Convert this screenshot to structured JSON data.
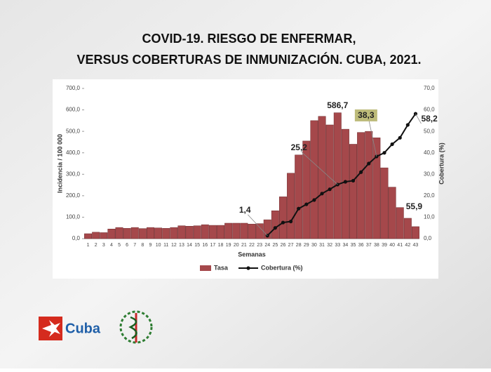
{
  "chart_data": {
    "type": "bar-line",
    "title": [
      "COVID-19.  RIESGO DE ENFERMAR,",
      "VERSUS COBERTURAS DE INMUNIZACIÓN.  CUBA, 2021."
    ],
    "xlabel": "Semanas",
    "ylabel": "Incidencia / 100 000",
    "y2label": "Cobertura (%)",
    "categories": [
      "1",
      "2",
      "3",
      "4",
      "5",
      "6",
      "7",
      "8",
      "9",
      "10",
      "11",
      "12",
      "13",
      "14",
      "15",
      "16",
      "17",
      "18",
      "19",
      "20",
      "21",
      "22",
      "23",
      "24",
      "25",
      "26",
      "27",
      "28",
      "29",
      "30",
      "31",
      "32",
      "33",
      "34",
      "35",
      "36",
      "37",
      "38",
      "39",
      "40",
      "41",
      "42",
      "43"
    ],
    "series": [
      {
        "name": "Tasa",
        "type": "bar",
        "color": "#a5484b",
        "values": [
          23,
          30,
          28,
          45,
          52,
          48,
          52,
          47,
          52,
          50,
          48,
          52,
          60,
          58,
          60,
          65,
          62,
          62,
          72,
          72,
          72,
          68,
          70,
          88,
          130,
          195,
          305,
          390,
          455,
          550,
          570,
          530,
          586.7,
          510,
          440,
          495,
          500,
          470,
          330,
          240,
          145,
          95,
          55.9
        ],
        "value_labels": [
          null,
          null,
          null,
          null,
          null,
          null,
          null,
          null,
          null,
          null,
          null,
          null,
          null,
          null,
          null,
          null,
          null,
          null,
          null,
          null,
          null,
          null,
          null,
          null,
          null,
          null,
          null,
          null,
          null,
          null,
          null,
          null,
          "586,7",
          null,
          null,
          null,
          null,
          null,
          null,
          null,
          null,
          null,
          "55,9"
        ]
      },
      {
        "name": "Cobertura (%)",
        "type": "line",
        "axis": "y2",
        "color": "#111111",
        "values": [
          null,
          null,
          null,
          null,
          null,
          null,
          null,
          null,
          null,
          null,
          null,
          null,
          null,
          null,
          null,
          null,
          null,
          null,
          null,
          null,
          null,
          null,
          null,
          1.4,
          5,
          7.5,
          8,
          14,
          16,
          18,
          21,
          23,
          25.2,
          26.5,
          27,
          31,
          35,
          38.3,
          40,
          44,
          47,
          53,
          58.2
        ],
        "value_labels": [
          null,
          null,
          null,
          null,
          null,
          null,
          null,
          null,
          null,
          null,
          null,
          null,
          null,
          null,
          null,
          null,
          null,
          null,
          null,
          null,
          null,
          null,
          null,
          "1,4",
          null,
          null,
          null,
          null,
          null,
          null,
          null,
          null,
          "25,2",
          null,
          null,
          null,
          null,
          "38,3",
          null,
          null,
          null,
          null,
          "58,2"
        ]
      }
    ],
    "ylim": [
      0,
      700
    ],
    "yticks": [
      {
        "value": 0,
        "label": "0,0"
      },
      {
        "value": 100,
        "label": "100,0"
      },
      {
        "value": 200,
        "label": "200,0"
      },
      {
        "value": 300,
        "label": "300,0"
      },
      {
        "value": 400,
        "label": "400,0"
      },
      {
        "value": 500,
        "label": "500,0"
      },
      {
        "value": 600,
        "label": "600,0"
      },
      {
        "value": 700,
        "label": "700,0"
      }
    ],
    "y2lim": [
      0,
      70
    ],
    "y2ticks": [
      {
        "value": 0,
        "label": "0,0"
      },
      {
        "value": 10,
        "label": "10,0"
      },
      {
        "value": 20,
        "label": "20,0"
      },
      {
        "value": 30,
        "label": "30,0"
      },
      {
        "value": 40,
        "label": "40,0"
      },
      {
        "value": 50,
        "label": "50,0"
      },
      {
        "value": 60,
        "label": "60,0"
      },
      {
        "value": 70,
        "label": "70,0"
      }
    ],
    "grid": false,
    "legend": "bottom"
  },
  "logo": {
    "text": "Cuba"
  }
}
